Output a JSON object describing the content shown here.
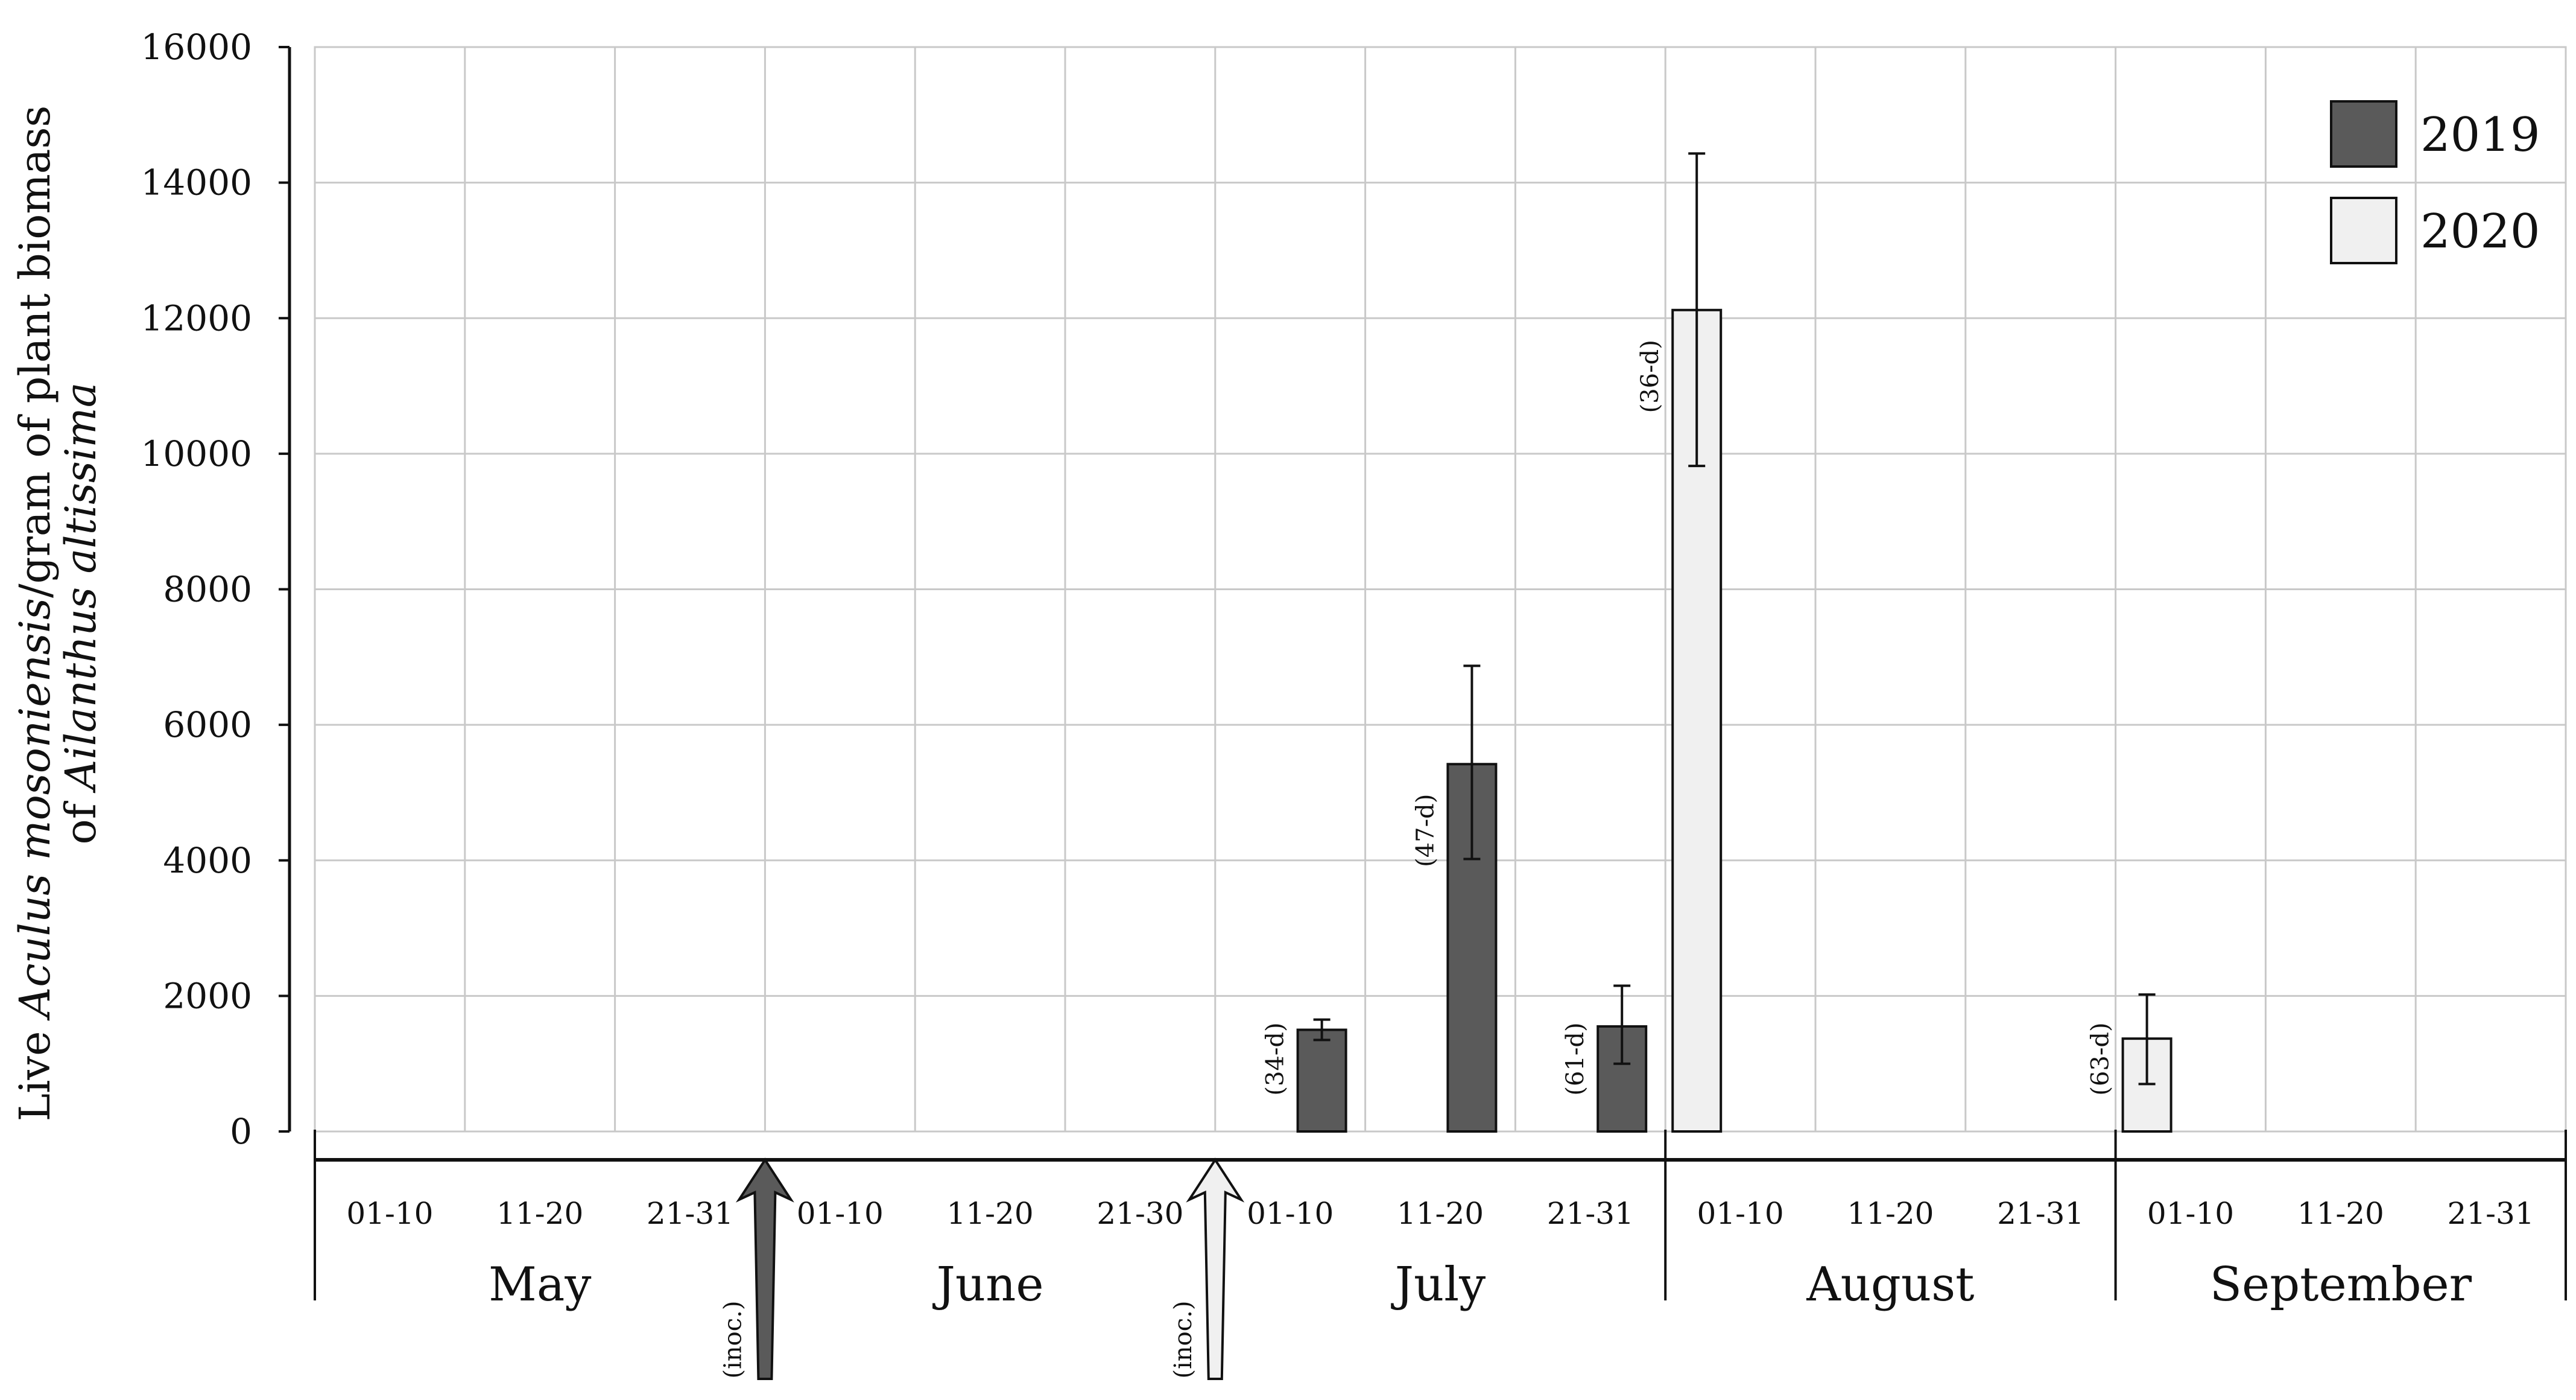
{
  "chart_data": {
    "type": "bar",
    "ylabel_parts": [
      {
        "text": "Live ",
        "italic": false
      },
      {
        "text": "Aculus mosoniensis",
        "italic": true
      },
      {
        "text": "/gram of plant biomass",
        "italic": false
      }
    ],
    "ylabel_line2_parts": [
      {
        "text": "of ",
        "italic": false
      },
      {
        "text": "Ailanthus altissima",
        "italic": true
      }
    ],
    "ylim": [
      0,
      16000
    ],
    "yticks": [
      "0",
      "2000",
      "4000",
      "6000",
      "8000",
      "10000",
      "12000",
      "14000",
      "16000"
    ],
    "grid": true,
    "legend_position": "top-right",
    "periods": [
      "01-10",
      "11-20",
      "21-31",
      "01-10",
      "11-20",
      "21-30",
      "01-10",
      "11-20",
      "21-31",
      "01-10",
      "11-20",
      "21-31",
      "01-10",
      "11-20",
      "21-31"
    ],
    "months": [
      {
        "name": "May",
        "periods": 3
      },
      {
        "name": "June",
        "periods": 3
      },
      {
        "name": "July",
        "periods": 3
      },
      {
        "name": "August",
        "periods": 3
      },
      {
        "name": "September",
        "periods": 3
      }
    ],
    "series": [
      {
        "name": "2019",
        "color": "#5a5a5a",
        "points": [
          {
            "period": 6,
            "value": 1500,
            "err_low": 1350,
            "err_high": 1650,
            "label": "(34-d)"
          },
          {
            "period": 7,
            "value": 5420,
            "err_low": 4020,
            "err_high": 6870,
            "label": "(47-d)"
          },
          {
            "period": 8,
            "value": 1550,
            "err_low": 1000,
            "err_high": 2150,
            "label": "(61-d)"
          }
        ]
      },
      {
        "name": "2020",
        "color": "#f0f0f0",
        "points": [
          {
            "period": 9,
            "value": 12120,
            "err_low": 9820,
            "err_high": 14430,
            "label": "(36-d)"
          },
          {
            "period": 12,
            "value": 1370,
            "err_low": 700,
            "err_high": 2020,
            "label": "(63-d)"
          }
        ]
      }
    ],
    "annotations": [
      {
        "text": "(inoc.)",
        "at_period_boundary": 3,
        "series": "2019",
        "color": "#5a5a5a"
      },
      {
        "text": "(inoc.)",
        "at_period_boundary": 6,
        "series": "2020",
        "color": "#f0f0f0"
      }
    ]
  }
}
